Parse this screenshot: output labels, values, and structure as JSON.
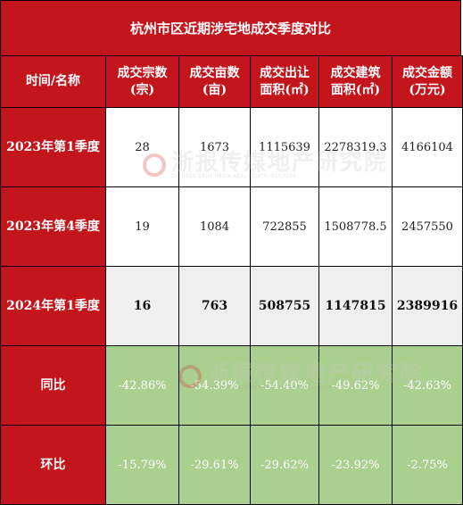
{
  "title": "杭州市区近期涉宅地成交季度对比",
  "headers": [
    "时间/名称",
    "成交宗数\n(宗)",
    "成交亩数\n(亩)",
    "成交出让\n面积(㎡)",
    "成交建筑\n面积(㎡)",
    "成交金额\n(万元)"
  ],
  "rows": [
    {
      "label": "2023年第1季度",
      "cells": [
        "28",
        "1673",
        "1115639",
        "2278319.3",
        "4166104"
      ]
    },
    {
      "label": "2023年第4季度",
      "cells": [
        "19",
        "1084",
        "722855",
        "1508778.5",
        "2457550"
      ]
    },
    {
      "label": "2024年第1季度",
      "cells": [
        "16",
        "763",
        "508755",
        "1147815",
        "2389916"
      ]
    },
    {
      "label": "同比",
      "cells": [
        "-42.86%",
        "-54.39%",
        "-54.40%",
        "-49.62%",
        "-42.63%"
      ]
    },
    {
      "label": "环比",
      "cells": [
        "-15.79%",
        "-29.61%",
        "-29.62%",
        "-23.92%",
        "-2.75%"
      ]
    }
  ],
  "watermark": {
    "cn": "浙报传媒地产研究院",
    "en": "ZHEJIANG DAILY MEDIA REAL ESTATE INSTITUTE"
  },
  "colors": {
    "header_red": "#c2161c",
    "green": "#a9d08e",
    "grey": "#efefef"
  }
}
